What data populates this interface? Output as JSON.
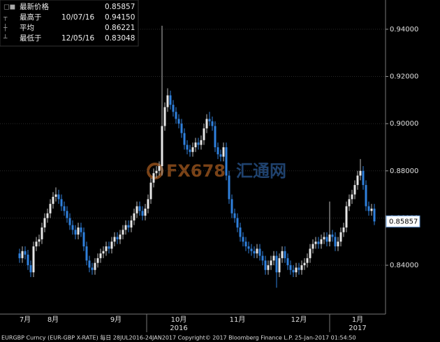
{
  "chart_data": {
    "type": "candlestick",
    "legend": [
      {
        "name": "最新价格",
        "date": null,
        "value": "0.85857"
      },
      {
        "name": "最高于",
        "date": "10/07/16",
        "value": "0.94150"
      },
      {
        "name": "平均",
        "date": null,
        "value": "0.86221"
      },
      {
        "name": "最低于",
        "date": "12/05/16",
        "value": "0.83048"
      }
    ],
    "open": [
      0.845,
      0.843,
      0.846,
      0.8445,
      0.84,
      0.837,
      0.848,
      0.85,
      0.851,
      0.856,
      0.86,
      0.862,
      0.866,
      0.869,
      0.87,
      0.868,
      0.865,
      0.863,
      0.86,
      0.857,
      0.855,
      0.853,
      0.856,
      0.854,
      0.848,
      0.842,
      0.839,
      0.838,
      0.841,
      0.843,
      0.845,
      0.846,
      0.848,
      0.847,
      0.85,
      0.852,
      0.851,
      0.853,
      0.855,
      0.857,
      0.856,
      0.859,
      0.862,
      0.865,
      0.863,
      0.861,
      0.864,
      0.868,
      0.875,
      0.879,
      0.88,
      0.882,
      0.899,
      0.907,
      0.912,
      0.908,
      0.905,
      0.902,
      0.9,
      0.896,
      0.891,
      0.889,
      0.888,
      0.89,
      0.892,
      0.891,
      0.893,
      0.898,
      0.902,
      0.901,
      0.899,
      0.89,
      0.887,
      0.886,
      0.89,
      0.878,
      0.868,
      0.862,
      0.86,
      0.856,
      0.852,
      0.85,
      0.848,
      0.847,
      0.846,
      0.845,
      0.847,
      0.844,
      0.842,
      0.838,
      0.84,
      0.842,
      0.844,
      0.837,
      0.843,
      0.846,
      0.843,
      0.84,
      0.838,
      0.837,
      0.839,
      0.838,
      0.84,
      0.841,
      0.843,
      0.847,
      0.849,
      0.85,
      0.849,
      0.851,
      0.852,
      0.85,
      0.853,
      0.852,
      0.848,
      0.85,
      0.854,
      0.856,
      0.865,
      0.868,
      0.87,
      0.874,
      0.878,
      0.88,
      0.874,
      0.865,
      0.863,
      0.864
    ],
    "high": [
      0.847,
      0.848,
      0.848,
      0.8465,
      0.842,
      0.85,
      0.852,
      0.853,
      0.858,
      0.862,
      0.864,
      0.868,
      0.871,
      0.873,
      0.872,
      0.87,
      0.867,
      0.865,
      0.862,
      0.859,
      0.857,
      0.858,
      0.858,
      0.856,
      0.85,
      0.844,
      0.841,
      0.843,
      0.845,
      0.847,
      0.848,
      0.85,
      0.85,
      0.852,
      0.854,
      0.854,
      0.855,
      0.857,
      0.859,
      0.859,
      0.861,
      0.864,
      0.867,
      0.867,
      0.865,
      0.866,
      0.87,
      0.877,
      0.881,
      0.882,
      0.884,
      0.9415,
      0.909,
      0.915,
      0.914,
      0.91,
      0.907,
      0.904,
      0.902,
      0.898,
      0.893,
      0.891,
      0.892,
      0.894,
      0.894,
      0.895,
      0.9,
      0.904,
      0.905,
      0.903,
      0.901,
      0.892,
      0.889,
      0.892,
      0.892,
      0.88,
      0.87,
      0.864,
      0.862,
      0.858,
      0.854,
      0.852,
      0.85,
      0.849,
      0.848,
      0.849,
      0.849,
      0.846,
      0.844,
      0.842,
      0.844,
      0.846,
      0.846,
      0.845,
      0.848,
      0.848,
      0.845,
      0.842,
      0.84,
      0.841,
      0.841,
      0.842,
      0.843,
      0.845,
      0.849,
      0.851,
      0.852,
      0.852,
      0.853,
      0.854,
      0.854,
      0.867,
      0.855,
      0.854,
      0.852,
      0.856,
      0.858,
      0.867,
      0.87,
      0.872,
      0.876,
      0.88,
      0.885,
      0.882,
      0.876,
      0.867,
      0.866,
      0.866
    ],
    "low": [
      0.841,
      0.841,
      0.8425,
      0.838,
      0.835,
      0.835,
      0.846,
      0.848,
      0.849,
      0.854,
      0.858,
      0.86,
      0.864,
      0.867,
      0.866,
      0.863,
      0.861,
      0.858,
      0.855,
      0.853,
      0.851,
      0.851,
      0.852,
      0.846,
      0.84,
      0.837,
      0.836,
      0.836,
      0.839,
      0.841,
      0.843,
      0.844,
      0.845,
      0.845,
      0.848,
      0.849,
      0.849,
      0.851,
      0.853,
      0.854,
      0.854,
      0.857,
      0.86,
      0.861,
      0.859,
      0.859,
      0.862,
      0.866,
      0.873,
      0.877,
      0.878,
      0.878,
      0.897,
      0.905,
      0.906,
      0.903,
      0.9,
      0.898,
      0.894,
      0.889,
      0.887,
      0.886,
      0.886,
      0.888,
      0.889,
      0.889,
      0.891,
      0.896,
      0.899,
      0.897,
      0.888,
      0.885,
      0.884,
      0.884,
      0.876,
      0.866,
      0.86,
      0.858,
      0.854,
      0.85,
      0.848,
      0.846,
      0.845,
      0.844,
      0.843,
      0.843,
      0.842,
      0.84,
      0.836,
      0.836,
      0.838,
      0.84,
      0.83048,
      0.835,
      0.841,
      0.841,
      0.838,
      0.836,
      0.835,
      0.835,
      0.836,
      0.836,
      0.838,
      0.839,
      0.841,
      0.845,
      0.847,
      0.847,
      0.847,
      0.849,
      0.848,
      0.848,
      0.85,
      0.846,
      0.846,
      0.848,
      0.852,
      0.854,
      0.863,
      0.866,
      0.868,
      0.872,
      0.876,
      0.872,
      0.863,
      0.861,
      0.861,
      0.857
    ],
    "close": [
      0.843,
      0.846,
      0.8445,
      0.84,
      0.837,
      0.848,
      0.85,
      0.851,
      0.856,
      0.86,
      0.862,
      0.866,
      0.869,
      0.87,
      0.868,
      0.865,
      0.863,
      0.86,
      0.857,
      0.855,
      0.853,
      0.856,
      0.854,
      0.848,
      0.842,
      0.839,
      0.838,
      0.841,
      0.843,
      0.845,
      0.846,
      0.848,
      0.847,
      0.85,
      0.852,
      0.851,
      0.853,
      0.855,
      0.857,
      0.856,
      0.859,
      0.862,
      0.865,
      0.863,
      0.861,
      0.864,
      0.868,
      0.875,
      0.879,
      0.88,
      0.882,
      0.899,
      0.907,
      0.912,
      0.908,
      0.905,
      0.902,
      0.9,
      0.896,
      0.891,
      0.889,
      0.888,
      0.89,
      0.892,
      0.891,
      0.893,
      0.898,
      0.902,
      0.901,
      0.899,
      0.89,
      0.887,
      0.886,
      0.89,
      0.878,
      0.868,
      0.862,
      0.86,
      0.856,
      0.852,
      0.85,
      0.848,
      0.847,
      0.846,
      0.845,
      0.847,
      0.844,
      0.842,
      0.838,
      0.84,
      0.842,
      0.844,
      0.837,
      0.843,
      0.846,
      0.843,
      0.84,
      0.838,
      0.837,
      0.839,
      0.838,
      0.84,
      0.841,
      0.843,
      0.847,
      0.849,
      0.85,
      0.849,
      0.851,
      0.852,
      0.85,
      0.853,
      0.852,
      0.848,
      0.85,
      0.854,
      0.856,
      0.865,
      0.868,
      0.87,
      0.874,
      0.878,
      0.88,
      0.874,
      0.865,
      0.863,
      0.864,
      0.85857
    ],
    "up_color": "#e6e6e6",
    "down_color": "#2f80dc",
    "xlim": [
      -7,
      131
    ],
    "xticks": [
      {
        "value": 2,
        "label": "7月"
      },
      {
        "value": 12,
        "label": "8月"
      },
      {
        "value": 34.5,
        "label": "9月"
      },
      {
        "value": 57,
        "label": "10月"
      },
      {
        "value": 78,
        "label": "11月"
      },
      {
        "value": 100,
        "label": "12月"
      },
      {
        "value": 121,
        "label": "1月"
      }
    ],
    "year_labels": [
      {
        "value": 57,
        "label": "2016"
      },
      {
        "value": 121,
        "label": "2017"
      }
    ],
    "ylim": [
      0.8199,
      0.9524
    ],
    "yticks": [
      {
        "value": 0.84,
        "label": "0.84000"
      },
      {
        "value": 0.86,
        "label": "0.86000"
      },
      {
        "value": 0.88,
        "label": "0.88000"
      },
      {
        "value": 0.9,
        "label": "0.90000"
      },
      {
        "value": 0.92,
        "label": "0.92000"
      },
      {
        "value": 0.94,
        "label": "0.94000"
      }
    ],
    "grid": true,
    "last_price": 0.85857,
    "watermark": [
      "FX678",
      "汇通网"
    ],
    "footer": "EURGBP Curncy (EUR-GBP X-RATE)  每日 28JUL2016-24JAN2017 Copyright© 2017 Bloomberg Finance L.P. 25-Jan-2017 01:54:50"
  }
}
